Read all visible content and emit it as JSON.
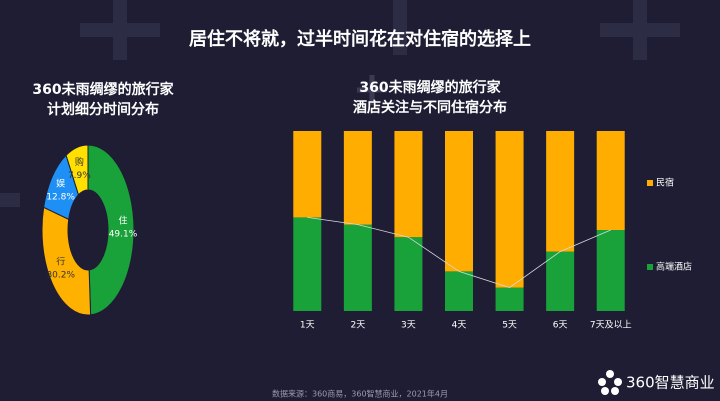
{
  "header": {
    "title": "居住不将就，过半时间花在对住宿的选择上"
  },
  "footer": {
    "source": "数据来源：360商易，360智慧商业，2021年4月",
    "logo": "360智慧商业"
  },
  "chart_data": [
    {
      "type": "donut",
      "title": [
        "360未雨绸缪的旅行家",
        "计划细分时间分布"
      ],
      "categories": [
        "住",
        "行",
        "娱",
        "购"
      ],
      "values": [
        49.1,
        30.2,
        12.8,
        7.9
      ],
      "value_labels": [
        "49.1%",
        "30.2%",
        "12.8%",
        "7.9%"
      ],
      "colors": [
        "#19a23a",
        "#ffb100",
        "#1e8ff5",
        "#ffe000"
      ]
    },
    {
      "type": "stacked_bar",
      "title": [
        "360未雨绸缪的旅行家",
        "酒店关注与不同住宿分布"
      ],
      "categories": [
        "1天",
        "2天",
        "3天",
        "4天",
        "5天",
        "6天",
        "7天及以上"
      ],
      "series": [
        {
          "name": "高端酒店",
          "color": "#19a23a",
          "values": [
            52,
            48,
            41,
            22,
            13,
            33,
            45
          ]
        },
        {
          "name": "民宿",
          "color": "#ffad00",
          "values": [
            48,
            52,
            59,
            78,
            87,
            67,
            55
          ]
        }
      ],
      "ylim": [
        0,
        100
      ],
      "legend": "right"
    }
  ]
}
